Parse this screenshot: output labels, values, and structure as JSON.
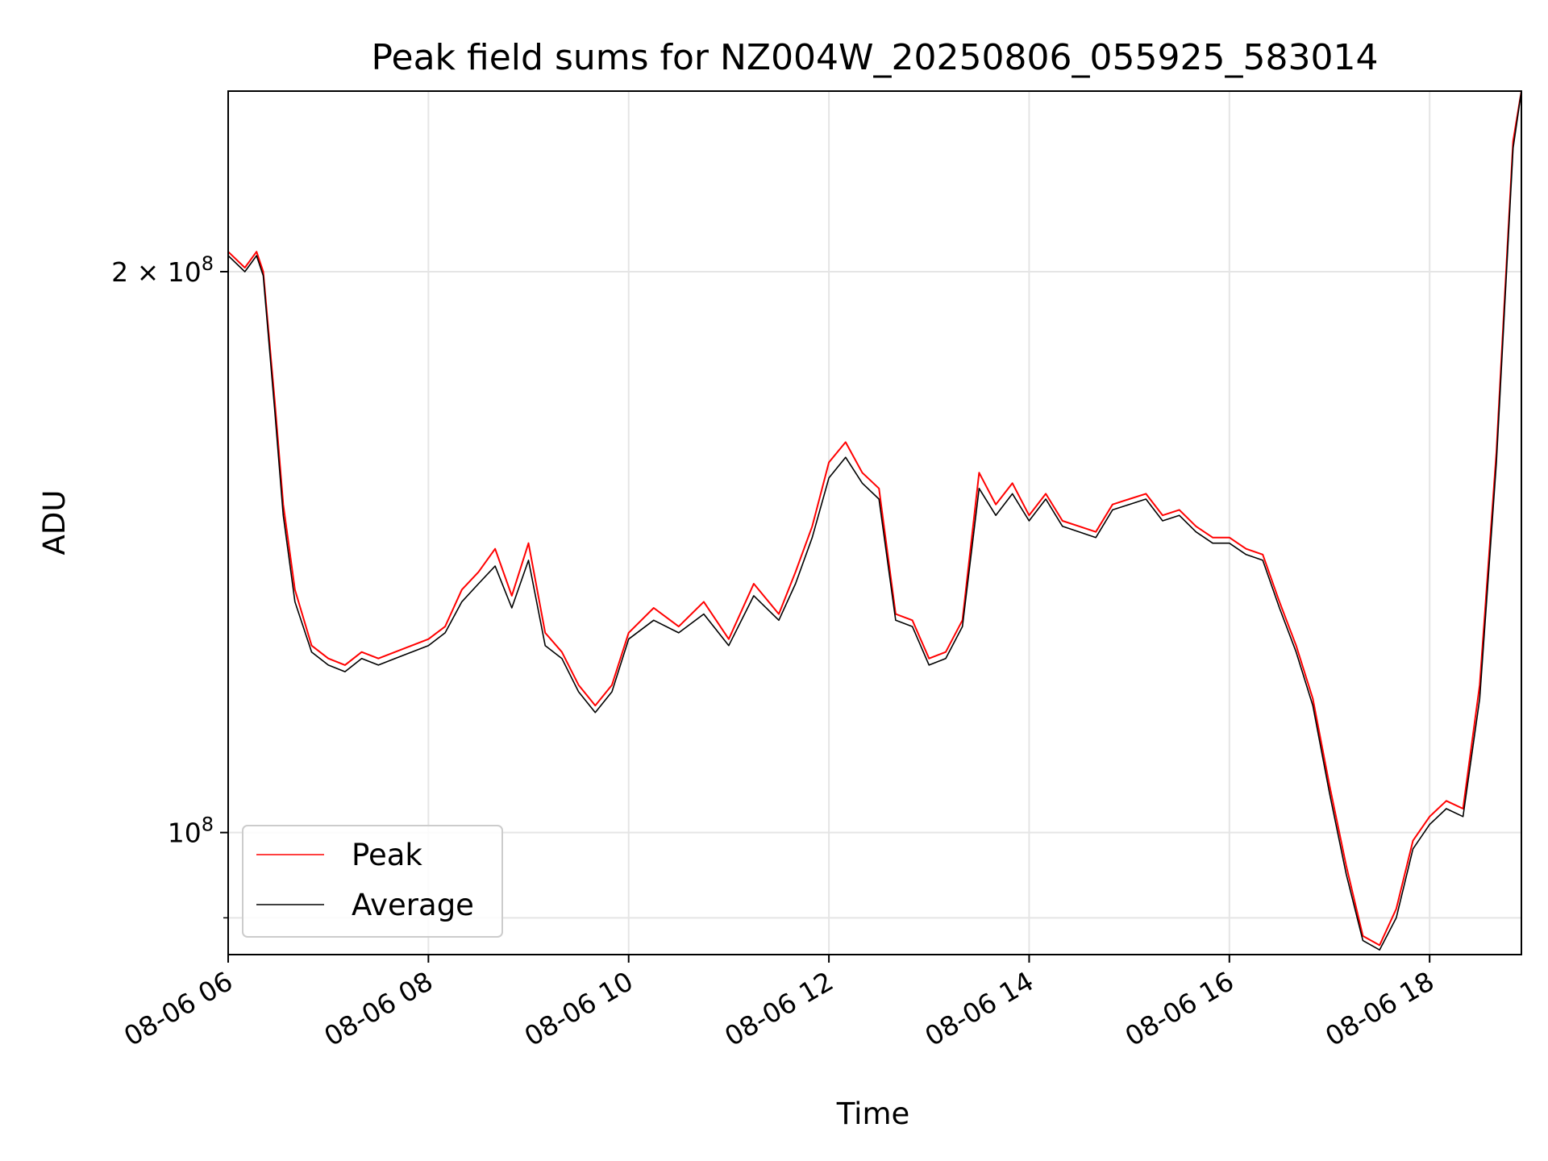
{
  "chart_data": {
    "type": "line",
    "title": "Peak field sums for NZ004W_20250806_055925_583014",
    "xlabel": "Time",
    "ylabel": "ADU",
    "y_scale": "log",
    "ylim": [
      86000000,
      250000000
    ],
    "xlim": [
      "08-06 06:00",
      "08-06 18:55"
    ],
    "grid": true,
    "legend_position": "lower-left",
    "x_ticks": [
      "08-06 06",
      "08-06 08",
      "08-06 10",
      "08-06 12",
      "08-06 14",
      "08-06 16",
      "08-06 18"
    ],
    "y_ticks": [
      {
        "value": 100000000,
        "base": "10",
        "exp": "8"
      },
      {
        "value": 200000000,
        "coef": "2",
        "times": "×",
        "base": "10",
        "exp": "8"
      }
    ],
    "series": [
      {
        "name": "Peak",
        "color": "#ff0000",
        "x": [
          "08-06 06:00",
          "08-06 06:10",
          "08-06 06:17",
          "08-06 06:21",
          "08-06 06:28",
          "08-06 06:33",
          "08-06 06:40",
          "08-06 06:50",
          "08-06 07:00",
          "08-06 07:10",
          "08-06 07:20",
          "08-06 07:30",
          "08-06 07:40",
          "08-06 07:50",
          "08-06 08:00",
          "08-06 08:10",
          "08-06 08:20",
          "08-06 08:30",
          "08-06 08:40",
          "08-06 08:50",
          "08-06 09:00",
          "08-06 09:10",
          "08-06 09:20",
          "08-06 09:30",
          "08-06 09:40",
          "08-06 09:50",
          "08-06 10:00",
          "08-06 10:15",
          "08-06 10:30",
          "08-06 10:45",
          "08-06 11:00",
          "08-06 11:15",
          "08-06 11:30",
          "08-06 11:40",
          "08-06 11:50",
          "08-06 12:00",
          "08-06 12:10",
          "08-06 12:20",
          "08-06 12:30",
          "08-06 12:40",
          "08-06 12:50",
          "08-06 13:00",
          "08-06 13:10",
          "08-06 13:20",
          "08-06 13:30",
          "08-06 13:40",
          "08-06 13:50",
          "08-06 14:00",
          "08-06 14:10",
          "08-06 14:20",
          "08-06 14:30",
          "08-06 14:40",
          "08-06 14:50",
          "08-06 15:00",
          "08-06 15:10",
          "08-06 15:20",
          "08-06 15:30",
          "08-06 15:40",
          "08-06 15:50",
          "08-06 16:00",
          "08-06 16:10",
          "08-06 16:20",
          "08-06 16:30",
          "08-06 16:40",
          "08-06 16:50",
          "08-06 17:00",
          "08-06 17:10",
          "08-06 17:20",
          "08-06 17:30",
          "08-06 17:40",
          "08-06 17:50",
          "08-06 18:00",
          "08-06 18:10",
          "08-06 18:20",
          "08-06 18:30",
          "08-06 18:40",
          "08-06 18:50",
          "08-06 18:55"
        ],
        "values": [
          205000000,
          201000000,
          205000000,
          200000000,
          170000000,
          150000000,
          135000000,
          126000000,
          124000000,
          123000000,
          125000000,
          124000000,
          125000000,
          126000000,
          127000000,
          129000000,
          135000000,
          138000000,
          142000000,
          134000000,
          143000000,
          128000000,
          125000000,
          120000000,
          117000000,
          120000000,
          128000000,
          132000000,
          129000000,
          133000000,
          127000000,
          136000000,
          131000000,
          138000000,
          146000000,
          158000000,
          162000000,
          156000000,
          153000000,
          131000000,
          130000000,
          124000000,
          125000000,
          130000000,
          156000000,
          150000000,
          154000000,
          148000000,
          152000000,
          147000000,
          146000000,
          145000000,
          150000000,
          151000000,
          152000000,
          148000000,
          149000000,
          146000000,
          144000000,
          144000000,
          142000000,
          141000000,
          133000000,
          126000000,
          118000000,
          106000000,
          96000000,
          88000000,
          87000000,
          91000000,
          99000000,
          102000000,
          104000000,
          103000000,
          120000000,
          160000000,
          235000000,
          250000000
        ]
      },
      {
        "name": "Average",
        "color": "#000000",
        "x": [
          "08-06 06:00",
          "08-06 06:10",
          "08-06 06:17",
          "08-06 06:21",
          "08-06 06:28",
          "08-06 06:33",
          "08-06 06:40",
          "08-06 06:50",
          "08-06 07:00",
          "08-06 07:10",
          "08-06 07:20",
          "08-06 07:30",
          "08-06 07:40",
          "08-06 07:50",
          "08-06 08:00",
          "08-06 08:10",
          "08-06 08:20",
          "08-06 08:30",
          "08-06 08:40",
          "08-06 08:50",
          "08-06 09:00",
          "08-06 09:10",
          "08-06 09:20",
          "08-06 09:30",
          "08-06 09:40",
          "08-06 09:50",
          "08-06 10:00",
          "08-06 10:15",
          "08-06 10:30",
          "08-06 10:45",
          "08-06 11:00",
          "08-06 11:15",
          "08-06 11:30",
          "08-06 11:40",
          "08-06 11:50",
          "08-06 12:00",
          "08-06 12:10",
          "08-06 12:20",
          "08-06 12:30",
          "08-06 12:40",
          "08-06 12:50",
          "08-06 13:00",
          "08-06 13:10",
          "08-06 13:20",
          "08-06 13:30",
          "08-06 13:40",
          "08-06 13:50",
          "08-06 14:00",
          "08-06 14:10",
          "08-06 14:20",
          "08-06 14:30",
          "08-06 14:40",
          "08-06 14:50",
          "08-06 15:00",
          "08-06 15:10",
          "08-06 15:20",
          "08-06 15:30",
          "08-06 15:40",
          "08-06 15:50",
          "08-06 16:00",
          "08-06 16:10",
          "08-06 16:20",
          "08-06 16:30",
          "08-06 16:40",
          "08-06 16:50",
          "08-06 17:00",
          "08-06 17:10",
          "08-06 17:20",
          "08-06 17:30",
          "08-06 17:40",
          "08-06 17:50",
          "08-06 18:00",
          "08-06 18:10",
          "08-06 18:20",
          "08-06 18:30",
          "08-06 18:40",
          "08-06 18:50",
          "08-06 18:55"
        ],
        "values": [
          204000000,
          200000000,
          204000000,
          199000000,
          168000000,
          148000000,
          133000000,
          125000000,
          123000000,
          122000000,
          124000000,
          123000000,
          124000000,
          125000000,
          126000000,
          128000000,
          133000000,
          136000000,
          139000000,
          132000000,
          140000000,
          126000000,
          124000000,
          119000000,
          116000000,
          119000000,
          127000000,
          130000000,
          128000000,
          131000000,
          126000000,
          134000000,
          130000000,
          136000000,
          144000000,
          155000000,
          159000000,
          154000000,
          151000000,
          130000000,
          129000000,
          123000000,
          124000000,
          129000000,
          153000000,
          148000000,
          152000000,
          147000000,
          151000000,
          146000000,
          145000000,
          144000000,
          149000000,
          150000000,
          151000000,
          147000000,
          148000000,
          145000000,
          143000000,
          143000000,
          141000000,
          140000000,
          132000000,
          125000000,
          117000000,
          105000000,
          95000000,
          87500000,
          86500000,
          90000000,
          98000000,
          101000000,
          103000000,
          102000000,
          118000000,
          158000000,
          233000000,
          250000000
        ]
      }
    ]
  }
}
